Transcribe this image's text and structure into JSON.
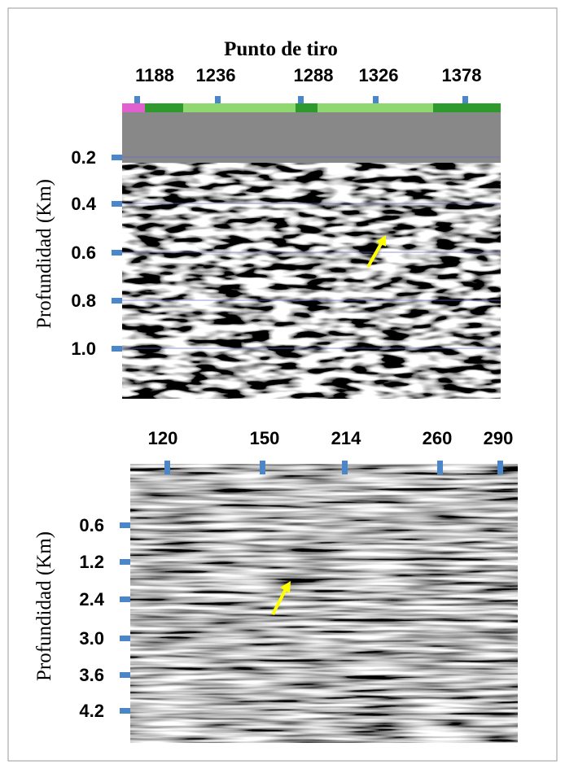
{
  "top_panel": {
    "title": "Punto de tiro",
    "x_ticks": [
      "1188",
      "1236",
      "1288",
      "1326",
      "1378"
    ],
    "y_label": "Profundidad (Km)",
    "y_ticks": [
      "0.2",
      "0.4",
      "0.6",
      "0.8",
      "1.0"
    ]
  },
  "bottom_panel": {
    "x_ticks": [
      "120",
      "150",
      "214",
      "260",
      "290"
    ],
    "y_label": "Profundidad (Km)",
    "y_ticks": [
      "0.6",
      "1.2",
      "2.4",
      "3.0",
      "3.6",
      "4.2"
    ]
  }
}
